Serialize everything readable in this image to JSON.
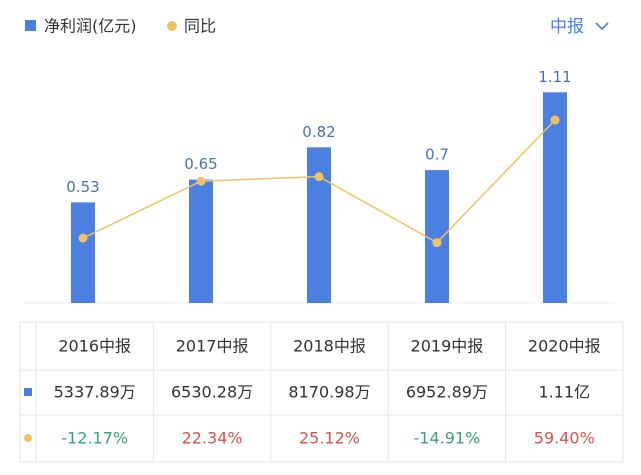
{
  "chart_data": {
    "type": "bar",
    "categories": [
      "2016中报",
      "2017中报",
      "2018中报",
      "2019中报",
      "2020中报"
    ],
    "series": [
      {
        "name": "净利润(亿元)",
        "color": "#4b7fe0",
        "values": [
          0.53,
          0.65,
          0.82,
          0.7,
          1.11
        ]
      },
      {
        "name": "同比",
        "color": "#f0c264",
        "type": "line",
        "axis": "y2",
        "values": [
          -12.17,
          22.34,
          25.12,
          -14.91,
          59.4
        ],
        "value_labels": [
          "-12.17%",
          "22.34%",
          "25.12%",
          "-14.91%",
          "59.40%"
        ]
      }
    ],
    "ylim": [
      0,
      1.28
    ],
    "y2lim": [
      -51.5,
      95.8
    ],
    "legend": "top-left"
  },
  "period_selector": "中报",
  "table": {
    "net_profit": [
      "5337.89万",
      "6530.28万",
      "8170.98万",
      "6952.89万",
      "1.11亿"
    ]
  }
}
